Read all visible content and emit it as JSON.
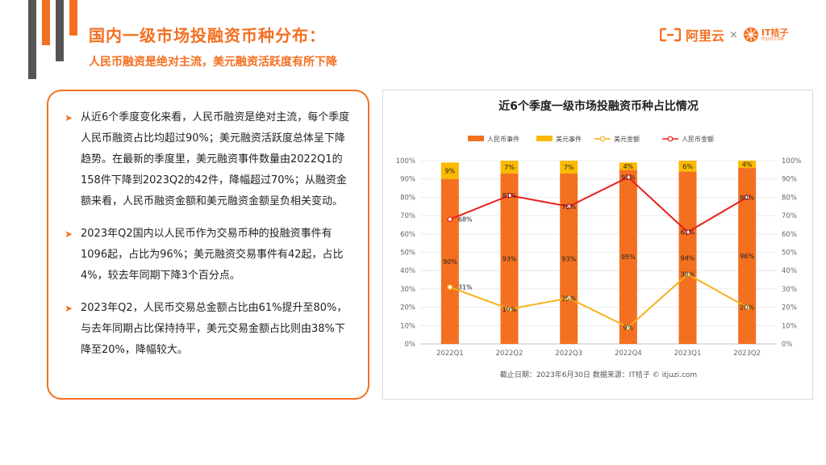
{
  "page": {
    "title": "国内一级市场投融资币种分布：",
    "subtitle": "人民币融资是绝对主流，美元融资活跃度有所下降",
    "logo_aliyun": "阿里云",
    "logo_times": "×",
    "logo_itjuzi": "IT桔子",
    "logo_itjuzi_sub": "ITJUZI.COM",
    "colors": {
      "accent": "#f37021",
      "deco_gray": "#555555"
    }
  },
  "bullets": [
    "从近6个季度变化来看，人民币融资是绝对主流，每个季度人民币融资占比均超过90%；美元融资活跃度总体呈下降趋势。在最新的季度里，美元融资事件数量由2022Q1的158件下降到2023Q2的42件，降幅超过70%；从融资金额来看，人民币融资金额和美元融资金额呈负相关变动。",
    "2023年Q2国内以人民币作为交易币种的投融资事件有1096起，占比为96%；美元融资交易事件有42起，占比4%，较去年同期下降3个百分点。",
    "2023年Q2，人民币交易总金额占比由61%提升至80%，与去年同期占比保持持平，美元交易金额占比则由38%下降至20%，降幅较大。"
  ],
  "bullet_marker": "➤",
  "chart_data": {
    "type": "bar",
    "title": "近6个季度一级市场投融资币种占比情况",
    "categories": [
      "2022Q1",
      "2022Q2",
      "2022Q3",
      "2022Q4",
      "2023Q1",
      "2023Q2"
    ],
    "series": [
      {
        "name": "人民币事件",
        "type": "bar",
        "stack": "events",
        "color": "#f37021",
        "values": [
          90,
          93,
          93,
          95,
          94,
          96
        ],
        "labels": [
          "90%",
          "93%",
          "93%",
          "95%",
          "94%",
          "96%"
        ]
      },
      {
        "name": "美元事件",
        "type": "bar",
        "stack": "events",
        "color": "#fbb900",
        "values": [
          9,
          7,
          7,
          4,
          6,
          4
        ],
        "labels": [
          "9%",
          "7%",
          "7%",
          "4%",
          "6%",
          "4%"
        ]
      },
      {
        "name": "美元金额",
        "type": "line",
        "color": "#f6b21a",
        "values": [
          31,
          19,
          25,
          9,
          38,
          20
        ],
        "labels": [
          "31%",
          "19%",
          "25%",
          "9%",
          "38%",
          "20%"
        ]
      },
      {
        "name": "人民币金额",
        "type": "line",
        "color": "#e8201a",
        "values": [
          68,
          81,
          75,
          91,
          61,
          80
        ],
        "labels": [
          "68%",
          "81%",
          "75%",
          "91%",
          "61%",
          "80%"
        ]
      }
    ],
    "y_ticks": [
      "0%",
      "10%",
      "20%",
      "30%",
      "40%",
      "50%",
      "60%",
      "70%",
      "80%",
      "90%",
      "100%"
    ],
    "ylim": [
      0,
      100
    ],
    "grid": true,
    "legend_position": "top",
    "note": "截止日期：2023年6月30日    数据来源：IT桔子 © itjuzi.com"
  }
}
